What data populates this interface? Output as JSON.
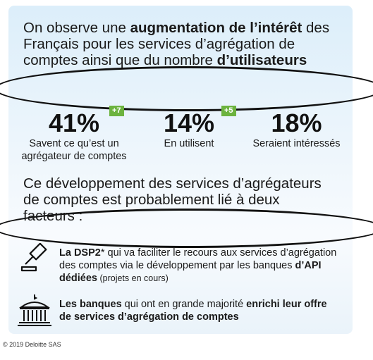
{
  "intro": {
    "t1": "On observe une ",
    "b1": "augmentation de l’intérêt",
    "t2": " des Français pour les services d’agrégation de comptes ainsi que du nombre ",
    "b2": "d’utilisateurs"
  },
  "stats": [
    {
      "value": "41%",
      "badge": "+7",
      "label1": "Savent ce qu’est un",
      "label2": "agrégateur de comptes"
    },
    {
      "value": "14%",
      "badge": "+5",
      "label1": "En utilisent",
      "label2": ""
    },
    {
      "value": "18%",
      "badge": "",
      "label1": "Seraient intéressés",
      "label2": ""
    }
  ],
  "section2": {
    "text": "Ce développement des services d’agrégateurs de comptes est probablement lié à deux facteurs :"
  },
  "factors": [
    {
      "icon": "gavel-icon",
      "b1": "La DSP2",
      "t1": "* qui va faciliter le recours aux services d’agrégation des comptes via le développement par les banques ",
      "b2": "d’API dédiées",
      "small": " (projets en cours)"
    },
    {
      "icon": "bank-building-icon",
      "b1": "Les banques",
      "t1": " qui ont en grande majorité ",
      "b2": "enrichi leur offre de services d’agrégation de comptes"
    }
  ],
  "copyright": "© 2019 Deloitte SAS",
  "colors": {
    "badge": "#6cb33f",
    "card": "#e4f1fb",
    "ring": "#111111"
  }
}
